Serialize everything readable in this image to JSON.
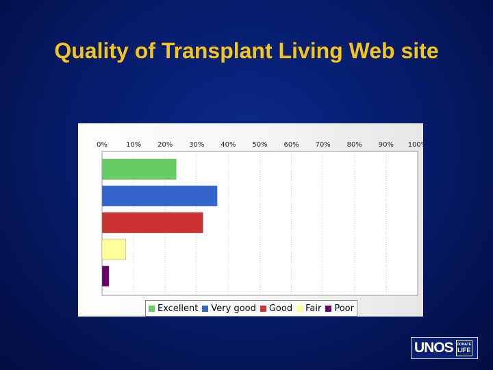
{
  "slide": {
    "title": "Quality of Transplant Living Web site"
  },
  "logo": {
    "primary": "UNOS",
    "secondary_top": "DONATE",
    "secondary_bottom": "LIFE"
  },
  "chart_data": {
    "type": "bar",
    "orientation": "horizontal",
    "title": "",
    "xlabel": "",
    "ylabel": "",
    "xlim": [
      0,
      100
    ],
    "x_ticks": [
      "0%",
      "10%",
      "20%",
      "30%",
      "40%",
      "50%",
      "60%",
      "70%",
      "80%",
      "90%",
      "100%"
    ],
    "grid": true,
    "legend_position": "bottom",
    "series": [
      {
        "name": "Excellent",
        "value": 23.5,
        "color": "#66cc66"
      },
      {
        "name": "Very good",
        "value": 36.5,
        "color": "#3366cc"
      },
      {
        "name": "Good",
        "value": 32,
        "color": "#cc3333"
      },
      {
        "name": "Fair",
        "value": 7.5,
        "color": "#ffff99"
      },
      {
        "name": "Poor",
        "value": 2.2,
        "color": "#660066"
      }
    ]
  }
}
